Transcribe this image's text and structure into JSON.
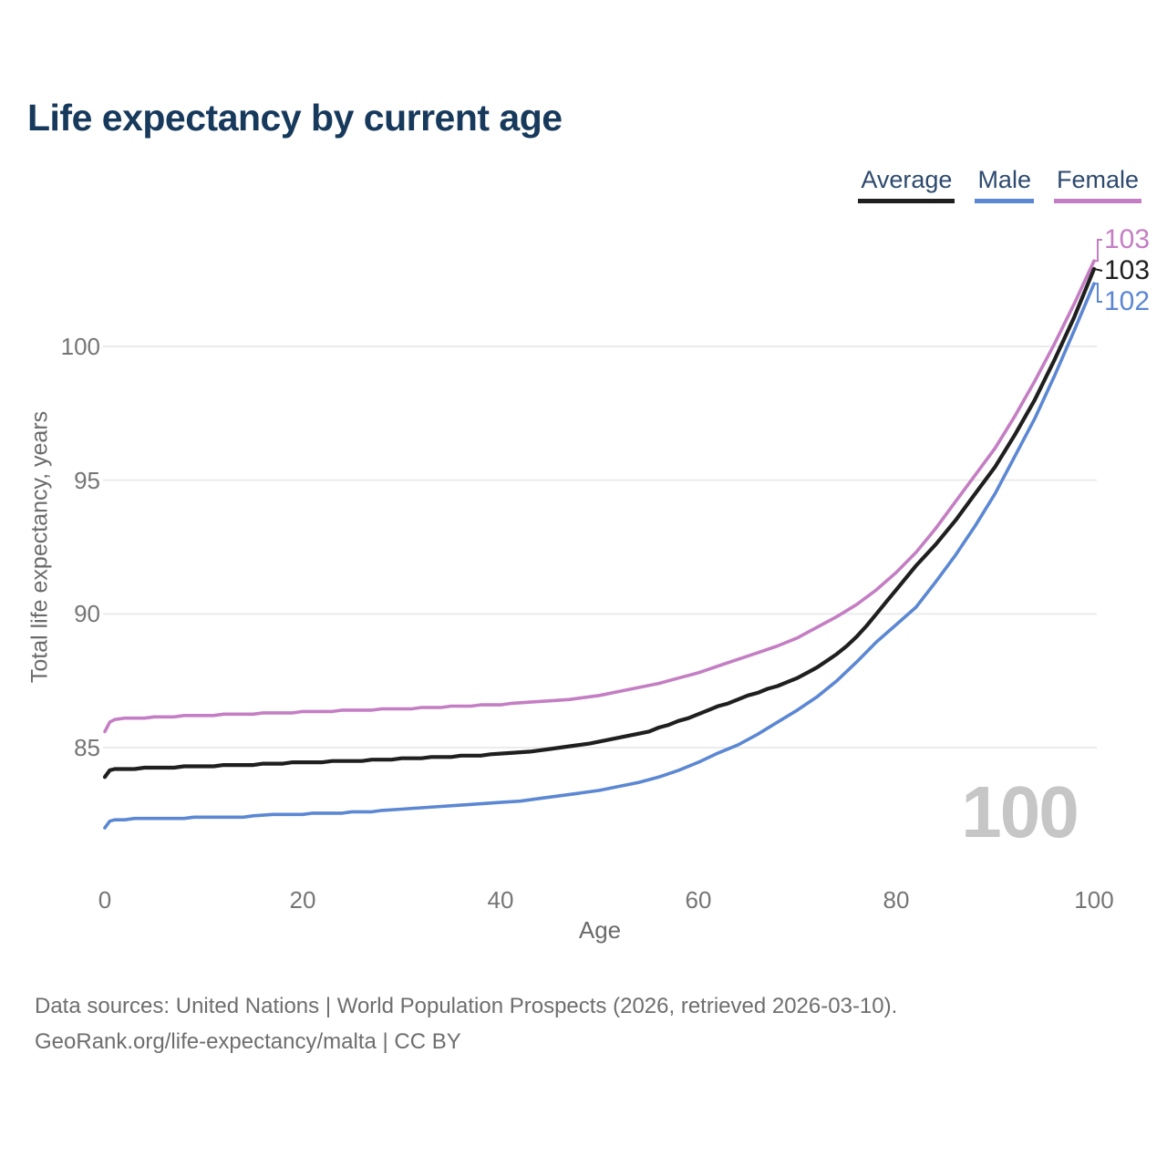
{
  "title": "Life expectancy by current age",
  "watermark": "100",
  "footer": {
    "line1": "Data sources: United Nations | World Population Prospects (2026, retrieved 2026-03-10).",
    "line2": "GeoRank.org/life-expectancy/malta | CC BY"
  },
  "chart_data": {
    "type": "line",
    "title": "Life expectancy by current age",
    "xlabel": "Age",
    "ylabel": "Total life expectancy, years",
    "xlim": [
      0,
      100
    ],
    "ylim": [
      81.5,
      103.5
    ],
    "x_ticks": [
      0,
      20,
      40,
      60,
      80,
      100
    ],
    "y_ticks": [
      85,
      90,
      95,
      100
    ],
    "grid": "horizontal",
    "legend_position": "top-right",
    "series": [
      {
        "name": "Average",
        "color": "#1f1f1f",
        "end_label": "103",
        "points": [
          [
            0,
            83.9
          ],
          [
            0.5,
            84.15
          ],
          [
            1,
            84.2
          ],
          [
            3,
            84.2
          ],
          [
            4,
            84.25
          ],
          [
            7,
            84.25
          ],
          [
            8,
            84.3
          ],
          [
            11,
            84.3
          ],
          [
            12,
            84.35
          ],
          [
            15,
            84.35
          ],
          [
            16,
            84.4
          ],
          [
            18,
            84.4
          ],
          [
            19,
            84.45
          ],
          [
            22,
            84.45
          ],
          [
            23,
            84.5
          ],
          [
            26,
            84.5
          ],
          [
            27,
            84.55
          ],
          [
            29,
            84.55
          ],
          [
            30,
            84.6
          ],
          [
            32,
            84.6
          ],
          [
            33,
            84.65
          ],
          [
            35,
            84.65
          ],
          [
            36,
            84.7
          ],
          [
            38,
            84.7
          ],
          [
            39,
            84.75
          ],
          [
            41,
            84.8
          ],
          [
            43,
            84.85
          ],
          [
            45,
            84.95
          ],
          [
            47,
            85.05
          ],
          [
            49,
            85.15
          ],
          [
            51,
            85.3
          ],
          [
            53,
            85.45
          ],
          [
            55,
            85.6
          ],
          [
            56,
            85.75
          ],
          [
            57,
            85.85
          ],
          [
            58,
            86.0
          ],
          [
            59,
            86.1
          ],
          [
            60,
            86.25
          ],
          [
            61,
            86.4
          ],
          [
            62,
            86.55
          ],
          [
            63,
            86.65
          ],
          [
            64,
            86.8
          ],
          [
            65,
            86.95
          ],
          [
            66,
            87.05
          ],
          [
            67,
            87.2
          ],
          [
            68,
            87.3
          ],
          [
            69,
            87.45
          ],
          [
            70,
            87.6
          ],
          [
            71,
            87.8
          ],
          [
            72,
            88.0
          ],
          [
            73,
            88.25
          ],
          [
            74,
            88.5
          ],
          [
            75,
            88.8
          ],
          [
            76,
            89.15
          ],
          [
            77,
            89.55
          ],
          [
            78,
            90.0
          ],
          [
            79,
            90.45
          ],
          [
            80,
            90.9
          ],
          [
            82,
            91.8
          ],
          [
            84,
            92.6
          ],
          [
            86,
            93.5
          ],
          [
            88,
            94.5
          ],
          [
            90,
            95.5
          ],
          [
            92,
            96.7
          ],
          [
            94,
            98.0
          ],
          [
            96,
            99.5
          ],
          [
            98,
            101.1
          ],
          [
            100,
            102.9
          ]
        ]
      },
      {
        "name": "Male",
        "color": "#5b87d3",
        "end_label": "102",
        "points": [
          [
            0,
            82.0
          ],
          [
            0.5,
            82.25
          ],
          [
            1,
            82.3
          ],
          [
            2,
            82.3
          ],
          [
            3,
            82.35
          ],
          [
            8,
            82.35
          ],
          [
            9,
            82.4
          ],
          [
            14,
            82.4
          ],
          [
            15,
            82.45
          ],
          [
            17,
            82.5
          ],
          [
            20,
            82.5
          ],
          [
            21,
            82.55
          ],
          [
            24,
            82.55
          ],
          [
            25,
            82.6
          ],
          [
            27,
            82.6
          ],
          [
            28,
            82.65
          ],
          [
            30,
            82.7
          ],
          [
            32,
            82.75
          ],
          [
            34,
            82.8
          ],
          [
            36,
            82.85
          ],
          [
            38,
            82.9
          ],
          [
            40,
            82.95
          ],
          [
            42,
            83.0
          ],
          [
            44,
            83.1
          ],
          [
            46,
            83.2
          ],
          [
            48,
            83.3
          ],
          [
            50,
            83.4
          ],
          [
            52,
            83.55
          ],
          [
            54,
            83.7
          ],
          [
            56,
            83.9
          ],
          [
            58,
            84.15
          ],
          [
            60,
            84.45
          ],
          [
            62,
            84.8
          ],
          [
            64,
            85.1
          ],
          [
            66,
            85.5
          ],
          [
            68,
            85.95
          ],
          [
            70,
            86.4
          ],
          [
            72,
            86.9
          ],
          [
            74,
            87.5
          ],
          [
            76,
            88.2
          ],
          [
            78,
            88.95
          ],
          [
            80,
            89.6
          ],
          [
            82,
            90.25
          ],
          [
            84,
            91.2
          ],
          [
            86,
            92.2
          ],
          [
            88,
            93.3
          ],
          [
            90,
            94.5
          ],
          [
            92,
            95.9
          ],
          [
            94,
            97.3
          ],
          [
            96,
            98.9
          ],
          [
            98,
            100.6
          ],
          [
            100,
            102.35
          ]
        ]
      },
      {
        "name": "Female",
        "color": "#c47ec3",
        "end_label": "103",
        "points": [
          [
            0,
            85.6
          ],
          [
            0.5,
            85.95
          ],
          [
            1,
            86.05
          ],
          [
            2,
            86.1
          ],
          [
            4,
            86.1
          ],
          [
            5,
            86.15
          ],
          [
            7,
            86.15
          ],
          [
            8,
            86.2
          ],
          [
            11,
            86.2
          ],
          [
            12,
            86.25
          ],
          [
            15,
            86.25
          ],
          [
            16,
            86.3
          ],
          [
            19,
            86.3
          ],
          [
            20,
            86.35
          ],
          [
            23,
            86.35
          ],
          [
            24,
            86.4
          ],
          [
            27,
            86.4
          ],
          [
            28,
            86.45
          ],
          [
            31,
            86.45
          ],
          [
            32,
            86.5
          ],
          [
            34,
            86.5
          ],
          [
            35,
            86.55
          ],
          [
            37,
            86.55
          ],
          [
            38,
            86.6
          ],
          [
            40,
            86.6
          ],
          [
            41,
            86.65
          ],
          [
            43,
            86.7
          ],
          [
            45,
            86.75
          ],
          [
            47,
            86.8
          ],
          [
            48,
            86.85
          ],
          [
            50,
            86.95
          ],
          [
            52,
            87.1
          ],
          [
            54,
            87.25
          ],
          [
            56,
            87.4
          ],
          [
            58,
            87.6
          ],
          [
            60,
            87.8
          ],
          [
            62,
            88.05
          ],
          [
            64,
            88.3
          ],
          [
            66,
            88.55
          ],
          [
            68,
            88.8
          ],
          [
            70,
            89.1
          ],
          [
            72,
            89.5
          ],
          [
            74,
            89.9
          ],
          [
            76,
            90.35
          ],
          [
            78,
            90.9
          ],
          [
            80,
            91.55
          ],
          [
            82,
            92.3
          ],
          [
            84,
            93.2
          ],
          [
            86,
            94.2
          ],
          [
            88,
            95.2
          ],
          [
            90,
            96.2
          ],
          [
            92,
            97.4
          ],
          [
            94,
            98.7
          ],
          [
            96,
            100.1
          ],
          [
            98,
            101.6
          ],
          [
            100,
            103.2
          ]
        ]
      }
    ]
  }
}
